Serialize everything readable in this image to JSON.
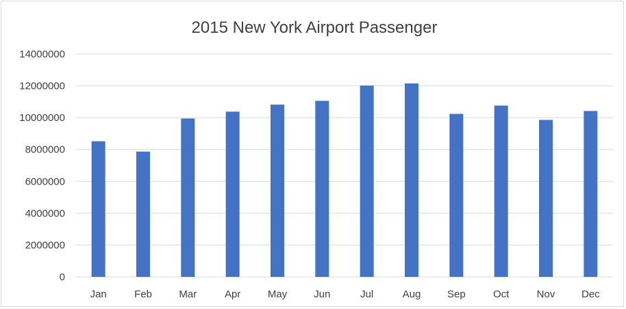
{
  "chart_data": {
    "type": "bar",
    "title": "2015 New York Airport Passenger",
    "xlabel": "",
    "ylabel": "",
    "categories": [
      "Jan",
      "Feb",
      "Mar",
      "Apr",
      "May",
      "Jun",
      "Jul",
      "Aug",
      "Sep",
      "Oct",
      "Nov",
      "Dec"
    ],
    "values": [
      8520000,
      7870000,
      9950000,
      10380000,
      10820000,
      11060000,
      12020000,
      12150000,
      10240000,
      10760000,
      9860000,
      10420000
    ],
    "ylim": [
      0,
      14000000
    ],
    "yticks": [
      "0",
      "2000000",
      "4000000",
      "6000000",
      "8000000",
      "10000000",
      "12000000",
      "14000000"
    ],
    "grid": true,
    "legend": "none",
    "bar_color": "#4472c4"
  }
}
